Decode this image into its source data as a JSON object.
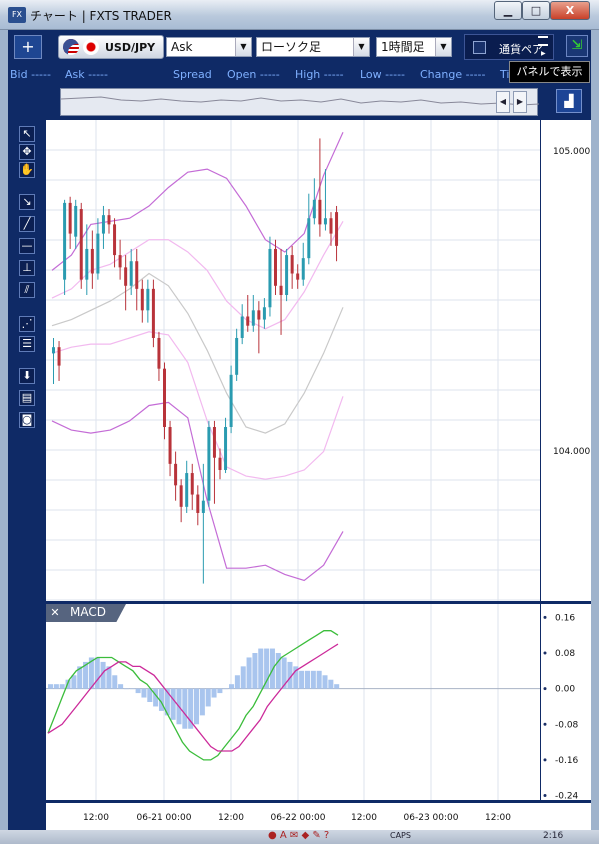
{
  "window": {
    "icon_text": "FX",
    "title": "チャート | FXTS TRADER",
    "minimize": "▁",
    "maximize": "□",
    "close": "X"
  },
  "toolbar": {
    "add": "+",
    "symbol": "USD/JPY",
    "price_type": "Ask",
    "chart_type": "ローソク足",
    "interval": "1時間足",
    "dropdown_arrow": "▼",
    "currency_panel_label": "通貨ペア",
    "show_panel_icon": "⇲"
  },
  "tooltip": "パネルで表示",
  "quote_bar": [
    {
      "label": "Bid",
      "value": "-----"
    },
    {
      "label": "Ask",
      "value": "-----"
    },
    {
      "label": "Spread",
      "value": ""
    },
    {
      "label": "Open",
      "value": "-----"
    },
    {
      "label": "High",
      "value": "-----"
    },
    {
      "label": "Low",
      "value": "-----"
    },
    {
      "label": "Change",
      "value": "-----"
    },
    {
      "label": "Ti",
      "value": ""
    }
  ],
  "navigator": {
    "left": "◀",
    "right": "▶",
    "latest": "▟"
  },
  "left_tools": [
    {
      "icon": "cursor-icon",
      "glyph": "↖"
    },
    {
      "icon": "crosshair-cursor-icon",
      "glyph": "✥"
    },
    {
      "icon": "hand-icon",
      "glyph": "✋"
    },
    {
      "icon": "pin-icon",
      "glyph": "↘"
    },
    {
      "icon": "trendline-icon",
      "glyph": "╱"
    },
    {
      "icon": "horizontal-line-icon",
      "glyph": "—"
    },
    {
      "icon": "vertical-line-icon",
      "glyph": "⊥"
    },
    {
      "icon": "channel-icon",
      "glyph": "⫽"
    },
    {
      "icon": "fan-icon",
      "glyph": "⋰"
    },
    {
      "icon": "fibonacci-icon",
      "glyph": "☰"
    },
    {
      "icon": "download-icon",
      "glyph": "⬇"
    },
    {
      "icon": "list-icon",
      "glyph": "▤"
    },
    {
      "icon": "camera-icon",
      "glyph": "◙"
    }
  ],
  "chart_data": [
    {
      "type": "candlestick",
      "title": "",
      "ylim": [
        103.55,
        105.12
      ],
      "price_labels": [
        "105.000",
        "104.000"
      ],
      "time_labels": [
        "12:00",
        "06-21 00:00",
        "12:00",
        "06-22 00:00",
        "12:00",
        "06-23 00:00",
        "12:00"
      ],
      "candles": [
        {
          "o": 104.36,
          "c": 104.38,
          "h": 104.41,
          "l": 104.26
        },
        {
          "o": 104.38,
          "c": 104.32,
          "h": 104.4,
          "l": 104.27
        },
        {
          "o": 104.6,
          "c": 104.85,
          "h": 104.86,
          "l": 104.55
        },
        {
          "o": 104.85,
          "c": 104.75,
          "h": 104.87,
          "l": 104.7
        },
        {
          "o": 104.74,
          "c": 104.84,
          "h": 104.86,
          "l": 104.7
        },
        {
          "o": 104.83,
          "c": 104.6,
          "h": 104.85,
          "l": 104.57
        },
        {
          "o": 104.6,
          "c": 104.7,
          "h": 104.78,
          "l": 104.55
        },
        {
          "o": 104.7,
          "c": 104.62,
          "h": 104.76,
          "l": 104.57
        },
        {
          "o": 104.62,
          "c": 104.75,
          "h": 104.8,
          "l": 104.6
        },
        {
          "o": 104.75,
          "c": 104.81,
          "h": 104.84,
          "l": 104.7
        },
        {
          "o": 104.81,
          "c": 104.78,
          "h": 104.83,
          "l": 104.75
        },
        {
          "o": 104.78,
          "c": 104.68,
          "h": 104.8,
          "l": 104.64
        },
        {
          "o": 104.68,
          "c": 104.64,
          "h": 104.73,
          "l": 104.6
        },
        {
          "o": 104.64,
          "c": 104.58,
          "h": 104.68,
          "l": 104.5
        },
        {
          "o": 104.58,
          "c": 104.66,
          "h": 104.7,
          "l": 104.55
        },
        {
          "o": 104.66,
          "c": 104.57,
          "h": 104.7,
          "l": 104.5
        },
        {
          "o": 104.57,
          "c": 104.5,
          "h": 104.6,
          "l": 104.46
        },
        {
          "o": 104.5,
          "c": 104.57,
          "h": 104.6,
          "l": 104.46
        },
        {
          "o": 104.57,
          "c": 104.41,
          "h": 104.6,
          "l": 104.38
        },
        {
          "o": 104.41,
          "c": 104.31,
          "h": 104.43,
          "l": 104.27
        },
        {
          "o": 104.31,
          "c": 104.12,
          "h": 104.33,
          "l": 104.08
        },
        {
          "o": 104.12,
          "c": 104.0,
          "h": 104.14,
          "l": 103.96
        },
        {
          "o": 104.0,
          "c": 103.93,
          "h": 104.04,
          "l": 103.88
        },
        {
          "o": 103.93,
          "c": 103.86,
          "h": 103.95,
          "l": 103.81
        },
        {
          "o": 103.86,
          "c": 103.97,
          "h": 104.01,
          "l": 103.84
        },
        {
          "o": 103.97,
          "c": 103.9,
          "h": 104.0,
          "l": 103.85
        },
        {
          "o": 103.9,
          "c": 103.84,
          "h": 103.93,
          "l": 103.8
        },
        {
          "o": 103.84,
          "c": 103.88,
          "h": 104.0,
          "l": 103.61
        },
        {
          "o": 103.88,
          "c": 104.12,
          "h": 104.14,
          "l": 103.86
        },
        {
          "o": 104.12,
          "c": 104.02,
          "h": 104.14,
          "l": 103.87
        },
        {
          "o": 104.02,
          "c": 103.98,
          "h": 104.05,
          "l": 103.95
        },
        {
          "o": 103.98,
          "c": 104.12,
          "h": 104.15,
          "l": 103.97
        },
        {
          "o": 104.12,
          "c": 104.29,
          "h": 104.32,
          "l": 104.1
        },
        {
          "o": 104.29,
          "c": 104.41,
          "h": 104.44,
          "l": 104.27
        },
        {
          "o": 104.41,
          "c": 104.48,
          "h": 104.52,
          "l": 104.39
        },
        {
          "o": 104.48,
          "c": 104.45,
          "h": 104.55,
          "l": 104.43
        },
        {
          "o": 104.45,
          "c": 104.5,
          "h": 104.55,
          "l": 104.43
        },
        {
          "o": 104.5,
          "c": 104.47,
          "h": 104.53,
          "l": 104.36
        },
        {
          "o": 104.47,
          "c": 104.51,
          "h": 104.54,
          "l": 104.44
        },
        {
          "o": 104.51,
          "c": 104.7,
          "h": 104.74,
          "l": 104.48
        },
        {
          "o": 104.7,
          "c": 104.58,
          "h": 104.73,
          "l": 104.55
        },
        {
          "o": 104.58,
          "c": 104.55,
          "h": 104.7,
          "l": 104.42
        },
        {
          "o": 104.55,
          "c": 104.68,
          "h": 104.7,
          "l": 104.53
        },
        {
          "o": 104.68,
          "c": 104.62,
          "h": 104.71,
          "l": 104.57
        },
        {
          "o": 104.62,
          "c": 104.6,
          "h": 104.65,
          "l": 104.57
        },
        {
          "o": 104.6,
          "c": 104.67,
          "h": 104.72,
          "l": 104.58
        },
        {
          "o": 104.67,
          "c": 104.8,
          "h": 104.88,
          "l": 104.65
        },
        {
          "o": 104.8,
          "c": 104.86,
          "h": 104.93,
          "l": 104.78
        },
        {
          "o": 104.86,
          "c": 104.78,
          "h": 105.06,
          "l": 104.74
        },
        {
          "o": 104.78,
          "c": 104.8,
          "h": 104.96,
          "l": 104.76
        },
        {
          "o": 104.8,
          "c": 104.75,
          "h": 104.82,
          "l": 104.71
        },
        {
          "o": 104.82,
          "c": 104.71,
          "h": 104.84,
          "l": 104.66
        }
      ],
      "bands": {
        "upper2": [
          104.63,
          104.68,
          104.78,
          104.79,
          104.8,
          104.84,
          104.9,
          104.95,
          104.96,
          104.93,
          104.84,
          104.73,
          104.69,
          104.75,
          104.94,
          105.08
        ],
        "upper1": [
          104.54,
          104.57,
          104.63,
          104.65,
          104.69,
          104.73,
          104.73,
          104.69,
          104.63,
          104.53,
          104.47,
          104.44,
          104.47,
          104.56,
          104.68,
          104.79
        ],
        "middle": [
          104.45,
          104.47,
          104.5,
          104.53,
          104.57,
          104.62,
          104.58,
          104.49,
          104.37,
          104.23,
          104.12,
          104.1,
          104.13,
          104.23,
          104.36,
          104.51
        ],
        "lower1": [
          104.36,
          104.38,
          104.39,
          104.39,
          104.41,
          104.43,
          104.42,
          104.33,
          104.14,
          103.99,
          103.96,
          103.95,
          103.96,
          103.98,
          104.04,
          104.22
        ],
        "lower2": [
          104.14,
          104.11,
          104.1,
          104.11,
          104.14,
          104.19,
          104.2,
          104.15,
          103.88,
          103.66,
          103.66,
          103.67,
          103.64,
          103.62,
          103.67,
          103.78
        ]
      }
    },
    {
      "type": "bar",
      "title": "MACD",
      "ylim": [
        -0.25,
        0.19
      ],
      "ticks": [
        "0.16",
        "0.08",
        "0.00",
        "-0.08",
        "-0.16",
        "-0.24"
      ],
      "histogram": [
        0.01,
        0.01,
        0.01,
        0.02,
        0.03,
        0.05,
        0.06,
        0.07,
        0.07,
        0.06,
        0.05,
        0.03,
        0.01,
        0.0,
        0.0,
        -0.01,
        -0.02,
        -0.03,
        -0.04,
        -0.05,
        -0.06,
        -0.07,
        -0.08,
        -0.09,
        -0.09,
        -0.08,
        -0.06,
        -0.04,
        -0.02,
        -0.01,
        0.0,
        0.01,
        0.03,
        0.05,
        0.07,
        0.08,
        0.09,
        0.09,
        0.09,
        0.08,
        0.07,
        0.06,
        0.05,
        0.04,
        0.04,
        0.04,
        0.04,
        0.03,
        0.02,
        0.01
      ],
      "series": [
        {
          "values": [
            -0.1,
            -0.06,
            -0.02,
            0.02,
            0.04,
            0.05,
            0.06,
            0.07,
            0.07,
            0.07,
            0.06,
            0.05,
            0.04,
            0.02,
            0.01,
            -0.01,
            -0.03,
            -0.06,
            -0.09,
            -0.12,
            -0.14,
            -0.15,
            -0.16,
            -0.16,
            -0.15,
            -0.13,
            -0.11,
            -0.09,
            -0.06,
            -0.04,
            -0.01,
            0.02,
            0.05,
            0.07,
            0.08,
            0.09,
            0.1,
            0.11,
            0.12,
            0.13,
            0.13,
            0.12
          ]
        },
        {
          "values": [
            -0.1,
            -0.09,
            -0.08,
            -0.06,
            -0.04,
            -0.02,
            0.0,
            0.02,
            0.04,
            0.05,
            0.06,
            0.06,
            0.05,
            0.05,
            0.04,
            0.03,
            0.01,
            -0.01,
            -0.03,
            -0.05,
            -0.07,
            -0.09,
            -0.11,
            -0.13,
            -0.14,
            -0.14,
            -0.14,
            -0.13,
            -0.11,
            -0.09,
            -0.07,
            -0.04,
            -0.02,
            0.0,
            0.02,
            0.04,
            0.05,
            0.06,
            0.07,
            0.08,
            0.09,
            0.1
          ]
        }
      ]
    }
  ],
  "taskbar": {
    "caps": "CAPS",
    "icons": "● A ✉ ◆ ✎ ?",
    "clock": "2:16"
  }
}
